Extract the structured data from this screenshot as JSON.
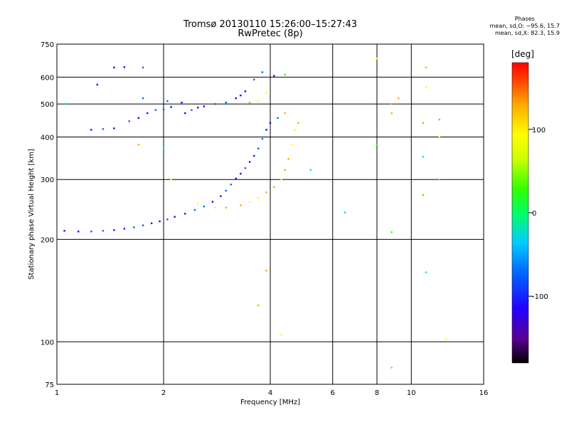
{
  "header": {
    "title_line1": "Tromsø 20130110 15:26:00–15:27:43",
    "title_line2": "RwPretec (8p)",
    "phases_title": "Phases",
    "phases_o": "mean, sd,O: −95.6, 15.7",
    "phases_x": "mean, sd,X:  82.3, 15.9"
  },
  "chart_data": {
    "type": "scatter",
    "title": "Tromsø 20130110 15:26:00–15:27:43",
    "subtitle": "RwPretec (8p)",
    "xlabel": "Frequency [MHz]",
    "ylabel": "Stationary phase Virtual Height [km]",
    "x_scale": "log",
    "y_scale": "log",
    "xlim": [
      1,
      16
    ],
    "ylim": [
      75,
      750
    ],
    "x_ticks": [
      1,
      2,
      4,
      6,
      8,
      10,
      16
    ],
    "y_ticks": [
      75,
      100,
      200,
      300,
      400,
      500,
      600,
      750
    ],
    "grid": true,
    "colorbar": {
      "label": "[deg]",
      "range": [
        -180,
        180
      ],
      "ticks": [
        -100,
        0,
        100
      ],
      "colors": [
        "#000000",
        "#6a00a8",
        "#2200ff",
        "#0066ff",
        "#00ccff",
        "#00ff66",
        "#33ff00",
        "#ccff00",
        "#ffff00",
        "#ffaa00",
        "#ff4400",
        "#ff0000"
      ]
    },
    "series": [
      {
        "mode": "O",
        "color_value_approx": -100,
        "points": [
          [
            1.05,
            212
          ],
          [
            1.15,
            211
          ],
          [
            1.25,
            211
          ],
          [
            1.35,
            212
          ],
          [
            1.45,
            213
          ],
          [
            1.55,
            215
          ],
          [
            1.65,
            217
          ],
          [
            1.75,
            220
          ],
          [
            1.85,
            223
          ],
          [
            1.95,
            226
          ],
          [
            2.05,
            229
          ],
          [
            2.15,
            233
          ],
          [
            2.3,
            238
          ],
          [
            2.45,
            244
          ],
          [
            2.6,
            250
          ],
          [
            2.75,
            258
          ],
          [
            2.9,
            268
          ],
          [
            3.0,
            278
          ],
          [
            3.1,
            290
          ],
          [
            3.2,
            302
          ],
          [
            3.3,
            312
          ],
          [
            3.4,
            324
          ],
          [
            3.5,
            338
          ],
          [
            3.6,
            352
          ],
          [
            3.7,
            370
          ],
          [
            3.8,
            395
          ],
          [
            3.9,
            420
          ],
          [
            4.0,
            440
          ],
          [
            4.2,
            455
          ],
          [
            1.45,
            640
          ],
          [
            1.55,
            642
          ],
          [
            1.75,
            640
          ],
          [
            1.6,
            445
          ],
          [
            1.7,
            455
          ],
          [
            1.8,
            470
          ],
          [
            1.9,
            480
          ],
          [
            2.0,
            482
          ],
          [
            2.1,
            490
          ],
          [
            2.3,
            470
          ],
          [
            2.4,
            480
          ],
          [
            2.5,
            488
          ],
          [
            2.6,
            492
          ],
          [
            2.8,
            500
          ],
          [
            3.0,
            505
          ],
          [
            3.2,
            520
          ],
          [
            3.4,
            545
          ],
          [
            3.6,
            590
          ],
          [
            3.8,
            620
          ],
          [
            4.1,
            605
          ],
          [
            1.25,
            420
          ],
          [
            1.35,
            422
          ],
          [
            1.45,
            424
          ],
          [
            1.3,
            570
          ],
          [
            1.75,
            520
          ],
          [
            2.05,
            510
          ],
          [
            2.25,
            505
          ],
          [
            3.3,
            530
          ]
        ]
      },
      {
        "mode": "X",
        "color_value_approx": 100,
        "points": [
          [
            2.5,
            255
          ],
          [
            2.8,
            248
          ],
          [
            3.0,
            248
          ],
          [
            3.3,
            252
          ],
          [
            3.5,
            258
          ],
          [
            3.7,
            265
          ],
          [
            3.9,
            275
          ],
          [
            4.1,
            285
          ],
          [
            4.3,
            300
          ],
          [
            4.4,
            320
          ],
          [
            4.5,
            345
          ],
          [
            4.6,
            380
          ],
          [
            4.7,
            420
          ],
          [
            4.8,
            440
          ],
          [
            3.5,
            505
          ],
          [
            3.7,
            510
          ],
          [
            3.9,
            540
          ],
          [
            4.4,
            470
          ],
          [
            1.7,
            380
          ],
          [
            2.1,
            300
          ],
          [
            3.7,
            128
          ],
          [
            3.9,
            162
          ],
          [
            4.3,
            105
          ],
          [
            8.0,
            680
          ],
          [
            8.8,
            500
          ],
          [
            9.2,
            520
          ],
          [
            11.0,
            560
          ],
          [
            11.0,
            640
          ],
          [
            12.0,
            300
          ],
          [
            12.0,
            400
          ],
          [
            12.5,
            102
          ],
          [
            8.8,
            84
          ],
          [
            8.8,
            470
          ]
        ]
      },
      {
        "mode": "other",
        "color_value_approx": 0,
        "points": [
          [
            2.0,
            370
          ],
          [
            5.2,
            320
          ],
          [
            8.8,
            210
          ],
          [
            10.8,
            440
          ],
          [
            10.8,
            350
          ],
          [
            11.0,
            160
          ],
          [
            12.0,
            450
          ],
          [
            4.4,
            610
          ],
          [
            6.5,
            240
          ],
          [
            8.0,
            380
          ],
          [
            10.8,
            270
          ],
          [
            1.05,
            500
          ]
        ]
      }
    ]
  }
}
